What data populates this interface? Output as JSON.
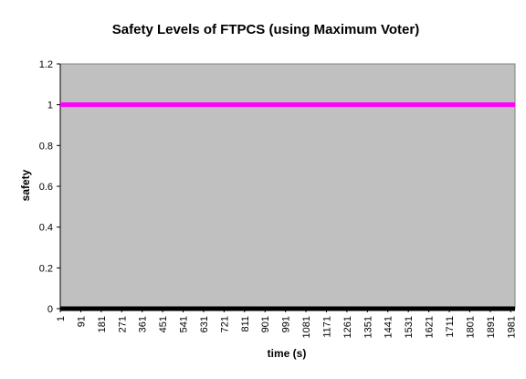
{
  "chart_data": {
    "type": "line",
    "title": "Safety Levels of FTPCS (using Maximum Voter)",
    "xlabel": "time (s)",
    "ylabel": "safety",
    "ylim": [
      0,
      1.2
    ],
    "y_ticks": [
      "0",
      "0.2",
      "0.4",
      "0.6",
      "0.8",
      "1",
      "1.2"
    ],
    "x_ticks": [
      "1",
      "91",
      "181",
      "271",
      "361",
      "451",
      "541",
      "631",
      "721",
      "811",
      "901",
      "991",
      "1081",
      "1171",
      "1261",
      "1351",
      "1441",
      "1531",
      "1621",
      "1711",
      "1801",
      "1891",
      "1981"
    ],
    "xlim": [
      1,
      2000
    ],
    "grid": false,
    "plot_background": "#c0c0c0",
    "series": [
      {
        "color": "#ff00ff",
        "x": [
          1,
          2000
        ],
        "y": [
          1,
          1
        ]
      },
      {
        "color": "#000000",
        "x": [
          1,
          2000
        ],
        "y": [
          0,
          0
        ]
      }
    ]
  }
}
